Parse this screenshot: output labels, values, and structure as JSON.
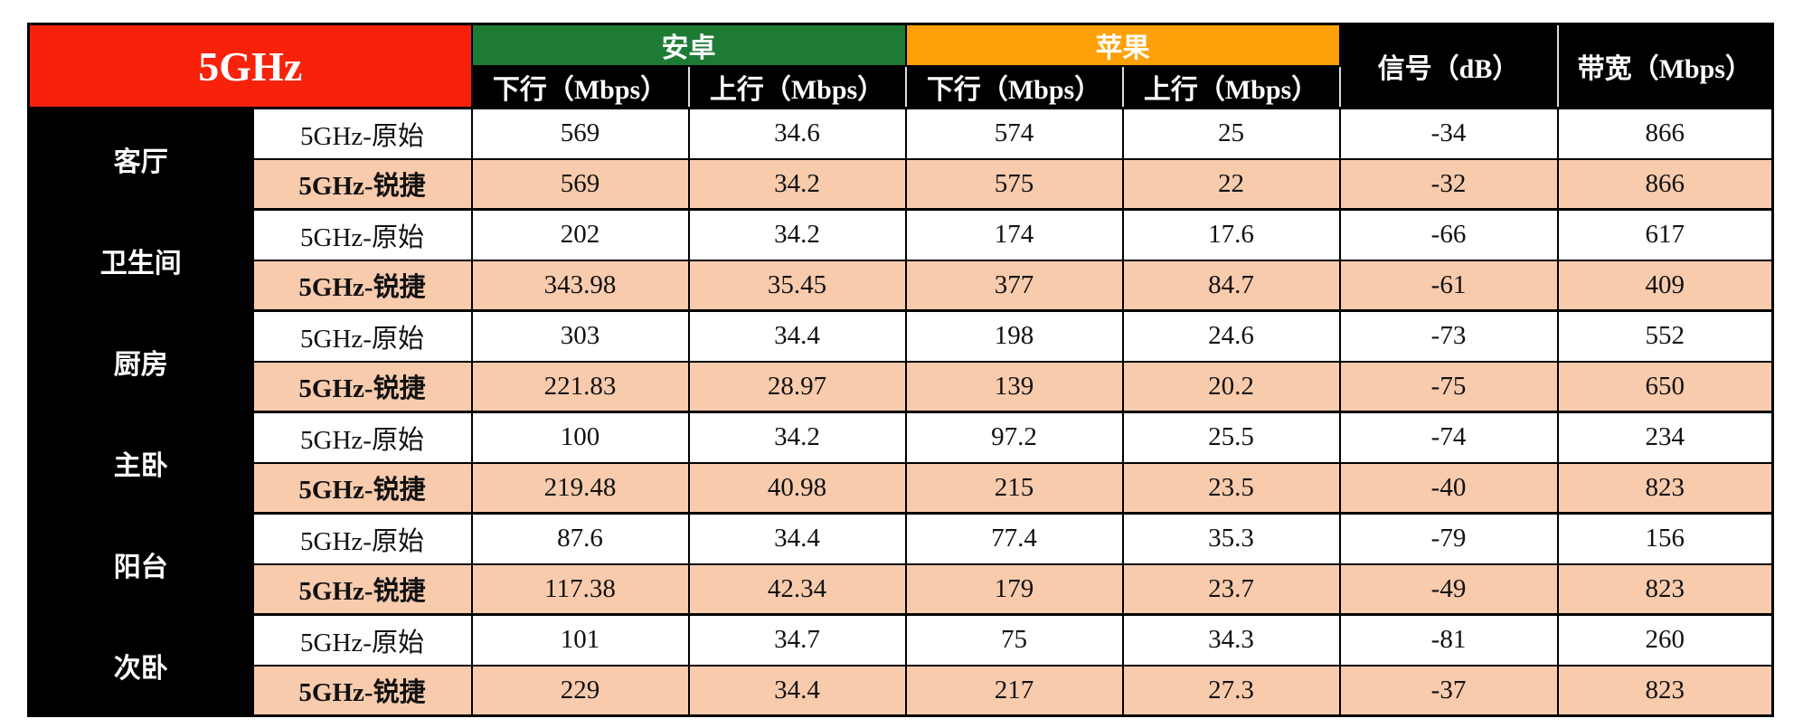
{
  "colors": {
    "band_red": "#F8220A",
    "android_green": "#1E7B34",
    "apple_orange": "#FCA10A",
    "highlight_peach": "#F8CBAD",
    "header_black": "#000000"
  },
  "table": {
    "title": "5GHz",
    "platform_groups": [
      {
        "label": "安卓"
      },
      {
        "label": "苹果"
      }
    ],
    "subheaders": [
      "下行（Mbps）",
      "上行（Mbps）",
      "下行（Mbps）",
      "上行（Mbps）"
    ],
    "signal_header": "信号（dB）",
    "bandwidth_header": "带宽（Mbps）",
    "rooms": [
      {
        "name": "客厅",
        "variants": [
          {
            "label": "5GHz-原始",
            "values": [
              "569",
              "34.6",
              "574",
              "25",
              "-34",
              "866"
            ]
          },
          {
            "label": "5GHz-锐捷",
            "values": [
              "569",
              "34.2",
              "575",
              "22",
              "-32",
              "866"
            ]
          }
        ]
      },
      {
        "name": "卫生间",
        "variants": [
          {
            "label": "5GHz-原始",
            "values": [
              "202",
              "34.2",
              "174",
              "17.6",
              "-66",
              "617"
            ]
          },
          {
            "label": "5GHz-锐捷",
            "values": [
              "343.98",
              "35.45",
              "377",
              "84.7",
              "-61",
              "409"
            ]
          }
        ]
      },
      {
        "name": "厨房",
        "variants": [
          {
            "label": "5GHz-原始",
            "values": [
              "303",
              "34.4",
              "198",
              "24.6",
              "-73",
              "552"
            ]
          },
          {
            "label": "5GHz-锐捷",
            "values": [
              "221.83",
              "28.97",
              "139",
              "20.2",
              "-75",
              "650"
            ]
          }
        ]
      },
      {
        "name": "主卧",
        "variants": [
          {
            "label": "5GHz-原始",
            "values": [
              "100",
              "34.2",
              "97.2",
              "25.5",
              "-74",
              "234"
            ]
          },
          {
            "label": "5GHz-锐捷",
            "values": [
              "219.48",
              "40.98",
              "215",
              "23.5",
              "-40",
              "823"
            ]
          }
        ]
      },
      {
        "name": "阳台",
        "variants": [
          {
            "label": "5GHz-原始",
            "values": [
              "87.6",
              "34.4",
              "77.4",
              "35.3",
              "-79",
              "156"
            ]
          },
          {
            "label": "5GHz-锐捷",
            "values": [
              "117.38",
              "42.34",
              "179",
              "23.7",
              "-49",
              "823"
            ]
          }
        ]
      },
      {
        "name": "次卧",
        "variants": [
          {
            "label": "5GHz-原始",
            "values": [
              "101",
              "34.7",
              "75",
              "34.3",
              "-81",
              "260"
            ]
          },
          {
            "label": "5GHz-锐捷",
            "values": [
              "229",
              "34.4",
              "217",
              "27.3",
              "-37",
              "823"
            ]
          }
        ]
      }
    ]
  }
}
